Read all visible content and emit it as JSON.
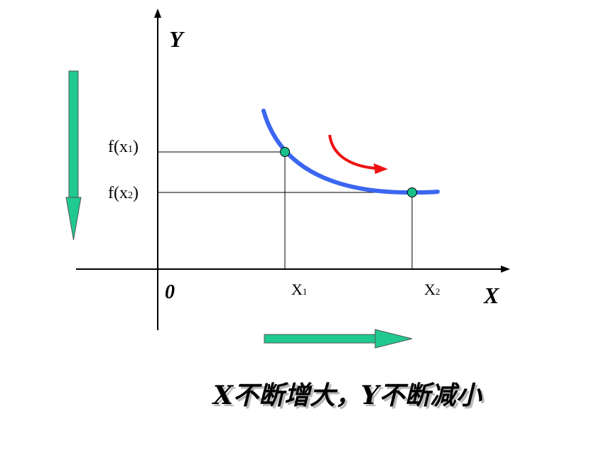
{
  "labels": {
    "y_axis": "Y",
    "x_axis": "X",
    "origin": "0",
    "fx1_base": "f(x",
    "fx1_sub": "1",
    "fx1_close": ")",
    "fx2_base": "f(x",
    "fx2_sub": "2",
    "fx2_close": ")",
    "x1_base": "X",
    "x1_sub": "1",
    "x2_base": "X",
    "x2_sub": "2"
  },
  "caption": "X不断增大，Y不断减小",
  "colors": {
    "curve": "#3b66f0",
    "point": "#17c08a",
    "red_arrow": "#ee1111",
    "block_arrow": "#1fc98f",
    "axis": "#000000"
  }
}
